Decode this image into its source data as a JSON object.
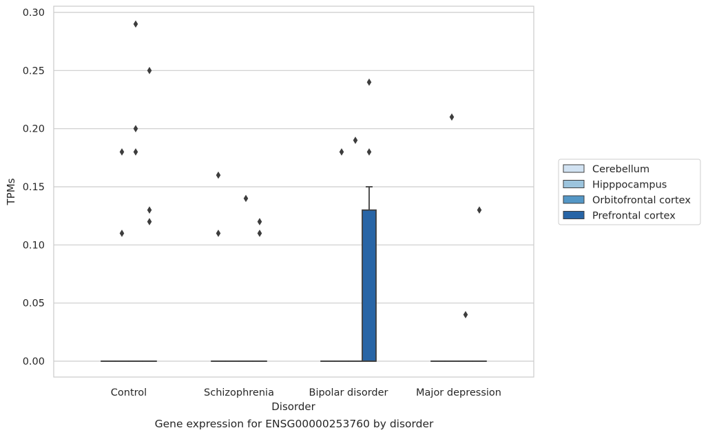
{
  "caption": "Gene expression for ENSG00000253760 by disorder",
  "chart_data": {
    "type": "box",
    "xlabel": "Disorder",
    "ylabel": "TPMs",
    "ylim": [
      -0.015,
      0.305
    ],
    "yticks": [
      0.0,
      0.05,
      0.1,
      0.15,
      0.2,
      0.25,
      0.3
    ],
    "ytick_labels": [
      "0.00",
      "0.05",
      "0.10",
      "0.15",
      "0.20",
      "0.25",
      "0.30"
    ],
    "categories": [
      "Control",
      "Schizophrenia",
      "Bipolar disorder",
      "Major depression"
    ],
    "grid": "horizontal",
    "legend_position": "right",
    "series": [
      {
        "name": "Cerebellum",
        "color": "#d1e2f2",
        "boxes": [
          {
            "q1": 0,
            "median": 0,
            "q3": 0,
            "whisker_low": 0,
            "whisker_high": 0,
            "outliers": []
          },
          {
            "q1": 0,
            "median": 0,
            "q3": 0,
            "whisker_low": 0,
            "whisker_high": 0,
            "outliers": [
              0.16,
              0.11
            ]
          },
          {
            "q1": 0,
            "median": 0,
            "q3": 0,
            "whisker_low": 0,
            "whisker_high": 0,
            "outliers": []
          },
          {
            "q1": 0,
            "median": 0,
            "q3": 0,
            "whisker_low": 0,
            "whisker_high": 0,
            "outliers": []
          }
        ]
      },
      {
        "name": "Hipppocampus",
        "color": "#9cc4dd",
        "boxes": [
          {
            "q1": 0,
            "median": 0,
            "q3": 0,
            "whisker_low": 0,
            "whisker_high": 0,
            "outliers": [
              0.18,
              0.11
            ]
          },
          {
            "q1": 0,
            "median": 0,
            "q3": 0,
            "whisker_low": 0,
            "whisker_high": 0,
            "outliers": []
          },
          {
            "q1": 0,
            "median": 0,
            "q3": 0,
            "whisker_low": 0,
            "whisker_high": 0,
            "outliers": [
              0.18
            ]
          },
          {
            "q1": 0,
            "median": 0,
            "q3": 0,
            "whisker_low": 0,
            "whisker_high": 0,
            "outliers": [
              0.21
            ]
          }
        ]
      },
      {
        "name": "Orbitofrontal cortex",
        "color": "#5497c6",
        "boxes": [
          {
            "q1": 0,
            "median": 0,
            "q3": 0,
            "whisker_low": 0,
            "whisker_high": 0,
            "outliers": [
              0.29,
              0.18,
              0.2
            ]
          },
          {
            "q1": 0,
            "median": 0,
            "q3": 0,
            "whisker_low": 0,
            "whisker_high": 0,
            "outliers": [
              0.14
            ]
          },
          {
            "q1": 0,
            "median": 0,
            "q3": 0,
            "whisker_low": 0,
            "whisker_high": 0,
            "outliers": [
              0.19
            ]
          },
          {
            "q1": 0,
            "median": 0,
            "q3": 0,
            "whisker_low": 0,
            "whisker_high": 0,
            "outliers": [
              0.04
            ]
          }
        ]
      },
      {
        "name": "Prefrontal cortex",
        "color": "#2865a6",
        "boxes": [
          {
            "q1": 0,
            "median": 0,
            "q3": 0,
            "whisker_low": 0,
            "whisker_high": 0,
            "outliers": [
              0.25,
              0.13,
              0.12
            ]
          },
          {
            "q1": 0,
            "median": 0,
            "q3": 0,
            "whisker_low": 0,
            "whisker_high": 0,
            "outliers": [
              0.12,
              0.11
            ]
          },
          {
            "q1": 0,
            "median": 0,
            "q3": 0.13,
            "whisker_low": 0,
            "whisker_high": 0.15,
            "outliers": [
              0.24,
              0.18
            ]
          },
          {
            "q1": 0,
            "median": 0,
            "q3": 0,
            "whisker_low": 0,
            "whisker_high": 0,
            "outliers": [
              0.13
            ]
          }
        ]
      }
    ]
  }
}
